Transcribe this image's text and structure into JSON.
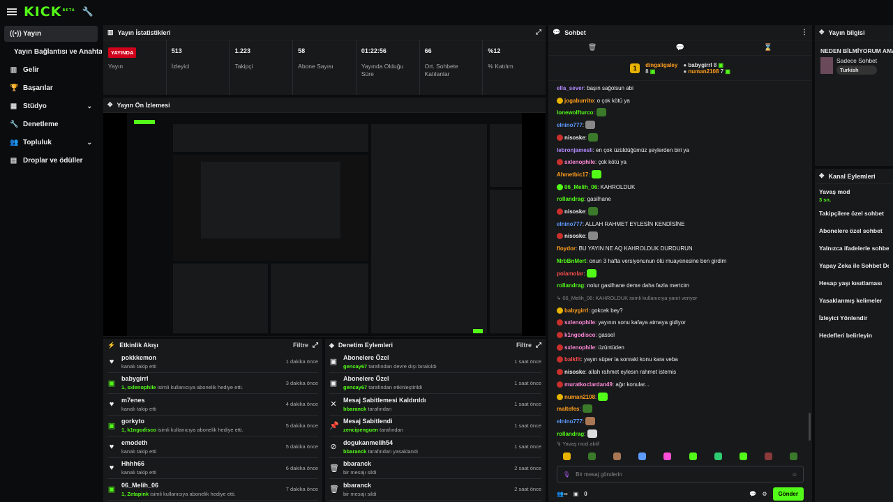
{
  "topbar": {
    "logo": "KICK",
    "logo_sup": "BETA"
  },
  "sidebar": {
    "items": [
      {
        "name": "sidebar-item-yayin",
        "icon": "live-icon",
        "glyph": "((•))",
        "label": "Yayın",
        "active": true
      },
      {
        "name": "sidebar-item-yayin-baglantisi",
        "label": "Yayın Bağlantısı ve Anahtarı",
        "sub": true
      },
      {
        "name": "sidebar-item-gelir",
        "glyph": "▥",
        "label": "Gelir"
      },
      {
        "name": "sidebar-item-basarilar",
        "glyph": "🏆",
        "label": "Başarılar"
      },
      {
        "name": "sidebar-item-studyo",
        "glyph": "▦",
        "label": "Stüdyo",
        "chev": true
      },
      {
        "name": "sidebar-item-denetleme",
        "glyph": "🔧",
        "label": "Denetleme"
      },
      {
        "name": "sidebar-item-topluluk",
        "glyph": "👥",
        "label": "Topluluk",
        "chev": true
      },
      {
        "name": "sidebar-item-droplar",
        "glyph": "▤",
        "label": "Droplar ve ödüller"
      }
    ]
  },
  "stats": {
    "title": "Yayın İstatistikleri",
    "items": [
      {
        "value": "YAYINDA",
        "label": "Yayın",
        "live": true
      },
      {
        "value": "513",
        "label": "İzleyici"
      },
      {
        "value": "1.223",
        "label": "Takipçi"
      },
      {
        "value": "58",
        "label": "Abone Sayısı"
      },
      {
        "value": "01:22:56",
        "label": "Yayında Olduğu Süre"
      },
      {
        "value": "66",
        "label": "Ort. Sohbete Katılanlar"
      },
      {
        "value": "%12",
        "label": "% Katılım"
      }
    ]
  },
  "preview": {
    "title": "Yayın Ön İzlemesi"
  },
  "activity": {
    "title": "Etkinlik Akışı",
    "filter": "Filtre",
    "rows": [
      {
        "icon": "heart-icon",
        "g": false,
        "name": "pokkkemon",
        "desc": "kanalı takip etti",
        "time": "1 dakika önce"
      },
      {
        "icon": "gift-icon",
        "g": true,
        "name": "babygirrl",
        "hl": "1, sxlenophile",
        "desc": " isimli kullanıcıya abonelik hediye etti.",
        "time": "3 dakika önce"
      },
      {
        "icon": "heart-icon",
        "g": false,
        "name": "m7enes",
        "desc": "kanalı takip etti",
        "time": "4 dakika önce"
      },
      {
        "icon": "gift-icon",
        "g": true,
        "name": "gorkyto",
        "hl": "1, k1ngodisco",
        "desc": " isimli kullanıcıya abonelik hediye etti.",
        "time": "5 dakika önce"
      },
      {
        "icon": "heart-icon",
        "g": false,
        "name": "emodeth",
        "desc": "kanalı takip etti",
        "time": "5 dakika önce"
      },
      {
        "icon": "heart-icon",
        "g": false,
        "name": "Hhhh66",
        "desc": "kanalı takip etti",
        "time": "6 dakika önce"
      },
      {
        "icon": "gift-icon",
        "g": true,
        "name": "06_Melih_06",
        "hl": "1, Zetapink",
        "desc": " isimli kullanıcıya abonelik hediye etti.",
        "time": "7 dakika önce"
      }
    ]
  },
  "moderation": {
    "title": "Denetim Eylemleri",
    "filter": "Filtre",
    "rows": [
      {
        "icon": "gift-box-icon",
        "name": "Abonelere Özel",
        "hl": "gencay67",
        "desc": " tarafından devre dışı bırakıldı",
        "time": "1 saat önce"
      },
      {
        "icon": "gift-box-icon",
        "name": "Abonelere Özel",
        "hl": "gencay67",
        "desc": " tarafından etkinleştirildi",
        "time": "1 saat önce"
      },
      {
        "icon": "unpin-icon",
        "name": "Mesaj Sabitlemesi Kaldırıldı",
        "hl": "bbaranck",
        "desc": " tarafından",
        "time": "1 saat önce"
      },
      {
        "icon": "pin-icon",
        "name": "Mesaj Sabitlendi",
        "hl": "zencipenguen",
        "desc": " tarafından",
        "time": "1 saat önce"
      },
      {
        "icon": "ban-icon",
        "name": "dogukanmelih54",
        "hl": "bbaranck",
        "desc": " tarafından yasaklandı",
        "time": "1 saat önce"
      },
      {
        "icon": "trash-icon",
        "name": "bbaranck",
        "desc": "bir mesajı sildi",
        "time": "2 saat önce"
      },
      {
        "icon": "trash-icon",
        "name": "bbaranck",
        "desc": "bir mesajı sildi",
        "time": "2 saat önce"
      }
    ]
  },
  "chat": {
    "title": "Sohbet",
    "pinned": {
      "user1": "dingaligaley",
      "count1": "8",
      "user2": "babygirrl",
      "count2": "8",
      "user3": "numan2108",
      "count3": "7"
    },
    "messages": [
      {
        "u": "ella_sever",
        "c": "#b38bff",
        "t": "başın sağolsun abi",
        "badge": ""
      },
      {
        "u": "jogaburrito",
        "c": "#ff9f1c",
        "t": "o çok kötü ya",
        "badge": "gold"
      },
      {
        "u": "lonewolfturco",
        "c": "#53fc18",
        "t": "",
        "emote": "#3a7a2a"
      },
      {
        "u": "elnino777",
        "c": "#5e9bff",
        "t": "",
        "emote": "#888"
      },
      {
        "u": "nisoske",
        "c": "#eee",
        "t": "",
        "emote": "#3a7a2a",
        "badge": "red"
      },
      {
        "u": "lebronjamesli",
        "c": "#b38bff",
        "t": "en çok üzüldüğümüz şeylerden biri ya"
      },
      {
        "u": "sxlenophile",
        "c": "#ff8ad8",
        "t": "çok kötü ya",
        "badge": "red"
      },
      {
        "u": "Ahmetbic17",
        "c": "#ff9f1c",
        "t": "",
        "emote": "#53fc18"
      },
      {
        "u": "06_Melih_06",
        "c": "#53fc18",
        "t": "KAHROLDUK",
        "badge": "green"
      },
      {
        "u": "rollandrag",
        "c": "#53fc18",
        "t": "gasilhane"
      },
      {
        "u": "nisoske",
        "c": "#eee",
        "t": "",
        "emote": "#3a7a2a",
        "badge": "red"
      },
      {
        "u": "elnino777",
        "c": "#5e9bff",
        "t": "ALLAH RAHMET EYLESİN KENDİSİNE"
      },
      {
        "u": "nisoske",
        "c": "#eee",
        "t": "",
        "emote": "#888",
        "badge": "red"
      },
      {
        "u": "floydor",
        "c": "#ff9f1c",
        "t": "BU YAYIN NE AQ KAHROLDUK DURDURUN"
      },
      {
        "u": "MrbBnMert",
        "c": "#53fc18",
        "t": "onun 3 hafta versiyonunun ölü muayenesine ben girdim"
      },
      {
        "u": "polamolar",
        "c": "#ff4d4d",
        "t": "",
        "emote": "#53fc18"
      },
      {
        "u": "rollandrag",
        "c": "#53fc18",
        "t": "nolur gasilhane deme daha fazla mertcim"
      },
      {
        "u": "",
        "c": "#888",
        "t": "↳ 06_Melih_06: KAHROLDUK isimli kullanıcıya yanıt veriyor",
        "reply": true
      },
      {
        "u": "babygirrl",
        "c": "#ff9f1c",
        "t": "gokcek bey?",
        "badge": "gold"
      },
      {
        "u": "sxlenophile",
        "c": "#ff8ad8",
        "t": "yayının sonu kafaya atmaya gidiyor",
        "badge": "red"
      },
      {
        "u": "k1ngodisco",
        "c": "#ff8ad8",
        "t": "gassel",
        "badge": "red"
      },
      {
        "u": "sxlenophile",
        "c": "#ff8ad8",
        "t": "üzüntüden",
        "badge": "red"
      },
      {
        "u": "balkfit",
        "c": "#ff4d4d",
        "t": "yayın süper la sonraki konu kara veba",
        "badge": "red"
      },
      {
        "u": "nisoske",
        "c": "#eee",
        "t": "allah rahmet eylesın rahmet istemis",
        "badge": "red"
      },
      {
        "u": "muratkoclardan49",
        "c": "#ff8ad8",
        "t": "ağır konular...",
        "badge": "red"
      },
      {
        "u": "numan2108",
        "c": "#ff9f1c",
        "t": "",
        "emote": "#53fc18",
        "badge": "gold"
      },
      {
        "u": "maltefes",
        "c": "#ff9f1c",
        "t": "",
        "emote": "#3a7a2a"
      },
      {
        "u": "elnino777",
        "c": "#5e9bff",
        "t": "",
        "emote": "#aa7755"
      },
      {
        "u": "rollandrag",
        "c": "#53fc18",
        "t": "",
        "emote": "#ddd"
      }
    ],
    "slow_mode": "Yavaş mod aktif",
    "placeholder": "Bir mesaj gönderin",
    "count": "0",
    "send": "Gönder"
  },
  "stream_info": {
    "title": "Yayın bilgisi",
    "name": "NEDEN BİLMİYORUM AMA",
    "category": "Sadece Sohbet",
    "tag": "Turkish"
  },
  "channel_actions": {
    "title": "Kanal Eylemleri",
    "items": [
      {
        "label": "Yavaş mod",
        "sub": "3 sn."
      },
      {
        "label": "Takipçilere özel sohbet"
      },
      {
        "label": "Abonelere özel sohbet"
      },
      {
        "label": "Yalnızca ifadelerle sohbet"
      },
      {
        "label": "Yapay Zeka ile Sohbet Denetimi"
      },
      {
        "label": "Hesap yaşı kısıtlaması"
      },
      {
        "label": "Yasaklanmış kelimeler"
      },
      {
        "label": "İzleyici Yönlendir"
      },
      {
        "label": "Hedefleri belirleyin"
      }
    ]
  }
}
